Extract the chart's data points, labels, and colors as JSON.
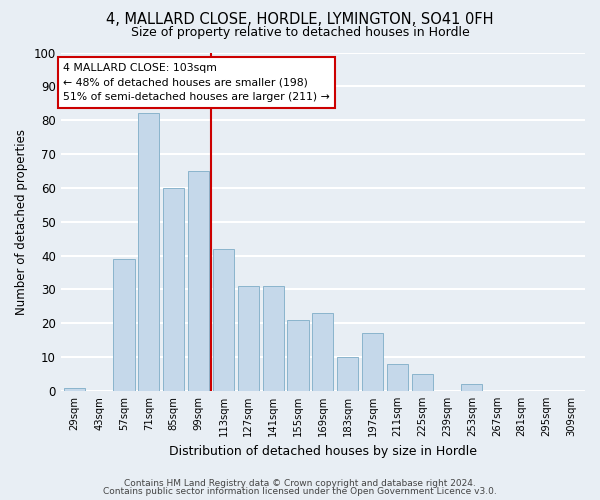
{
  "title": "4, MALLARD CLOSE, HORDLE, LYMINGTON, SO41 0FH",
  "subtitle": "Size of property relative to detached houses in Hordle",
  "xlabel": "Distribution of detached houses by size in Hordle",
  "ylabel": "Number of detached properties",
  "bar_labels": [
    "29sqm",
    "43sqm",
    "57sqm",
    "71sqm",
    "85sqm",
    "99sqm",
    "113sqm",
    "127sqm",
    "141sqm",
    "155sqm",
    "169sqm",
    "183sqm",
    "197sqm",
    "211sqm",
    "225sqm",
    "239sqm",
    "253sqm",
    "267sqm",
    "281sqm",
    "295sqm",
    "309sqm"
  ],
  "bar_values": [
    1,
    0,
    39,
    82,
    60,
    65,
    42,
    31,
    31,
    21,
    23,
    10,
    17,
    8,
    5,
    0,
    2,
    0,
    0,
    0,
    0
  ],
  "bar_color": "#c5d8ea",
  "bar_edge_color": "#8ab4cc",
  "vline_x": 5.5,
  "vline_color": "#cc0000",
  "annotation_text": "4 MALLARD CLOSE: 103sqm\n← 48% of detached houses are smaller (198)\n51% of semi-detached houses are larger (211) →",
  "annotation_box_color": "white",
  "annotation_box_edge": "#cc0000",
  "ylim": [
    0,
    100
  ],
  "yticks": [
    0,
    10,
    20,
    30,
    40,
    50,
    60,
    70,
    80,
    90,
    100
  ],
  "footer1": "Contains HM Land Registry data © Crown copyright and database right 2024.",
  "footer2": "Contains public sector information licensed under the Open Government Licence v3.0.",
  "background_color": "#e8eef4",
  "plot_bg_color": "#e8eef4",
  "grid_color": "white"
}
